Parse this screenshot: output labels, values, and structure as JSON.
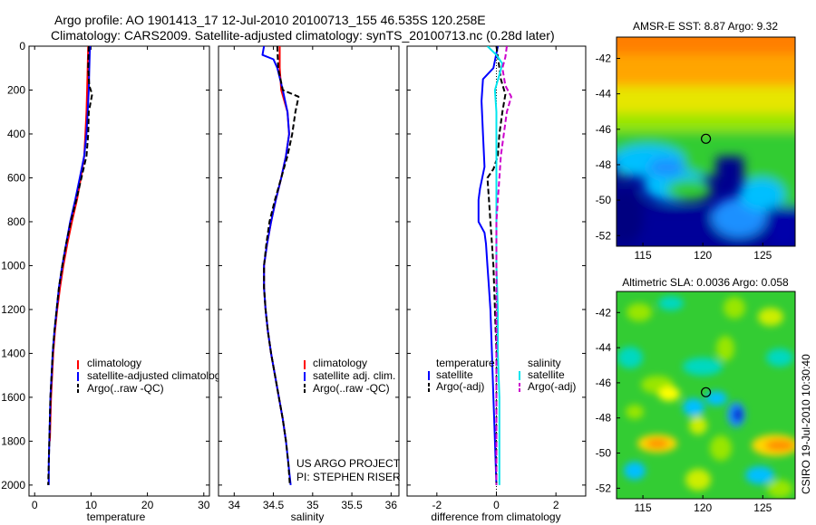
{
  "header": {
    "line1": "Argo profile: AO 1901413_17 12-Jul-2010 20100713_155 46.535S 120.258E",
    "line2": "Climatology: CARS2009. Satellite-adjusted climatology: synTS_20100713.nc (0.28d later)"
  },
  "side_stamp": "CSIRO 19-Jul-2010 10:30:40",
  "colors": {
    "climatology": "#ff0000",
    "satellite": "#0000ff",
    "argo": "#000000",
    "sal_sat": "#00e5ee",
    "sal_argo": "#cc00cc",
    "marker": "#000000"
  },
  "chart_data": [
    {
      "id": "temperature",
      "type": "line",
      "xlabel": "temperature",
      "xlim": [
        -1,
        31
      ],
      "ylim": [
        0,
        2050
      ],
      "y_reversed": true,
      "xticks": [
        0,
        10,
        20,
        30
      ],
      "yticks": [
        0,
        200,
        400,
        600,
        800,
        1000,
        1200,
        1400,
        1600,
        1800,
        2000
      ],
      "legend": {
        "position": "lower-right",
        "entries": [
          "climatology",
          "satellite-adjusted climatolog",
          "Argo(..raw -QC)"
        ]
      },
      "series": [
        {
          "name": "climatology",
          "color": "#ff0000",
          "dash": false,
          "points": [
            [
              9.5,
              0
            ],
            [
              9.4,
              100
            ],
            [
              9.3,
              200
            ],
            [
              9.2,
              300
            ],
            [
              9.0,
              400
            ],
            [
              8.8,
              500
            ],
            [
              8.2,
              600
            ],
            [
              7.5,
              700
            ],
            [
              6.6,
              800
            ],
            [
              5.8,
              900
            ],
            [
              5.1,
              1000
            ],
            [
              4.5,
              1100
            ],
            [
              4.0,
              1200
            ],
            [
              3.6,
              1300
            ],
            [
              3.3,
              1400
            ],
            [
              3.1,
              1500
            ],
            [
              2.9,
              1600
            ],
            [
              2.8,
              1700
            ],
            [
              2.7,
              1800
            ]
          ]
        },
        {
          "name": "satellite-adjusted climatolog",
          "color": "#0000ff",
          "dash": false,
          "points": [
            [
              9.8,
              0
            ],
            [
              9.7,
              100
            ],
            [
              9.6,
              200
            ],
            [
              9.4,
              300
            ],
            [
              9.2,
              400
            ],
            [
              8.8,
              500
            ],
            [
              8.0,
              600
            ],
            [
              7.2,
              700
            ],
            [
              6.3,
              800
            ],
            [
              5.6,
              900
            ],
            [
              4.9,
              1000
            ],
            [
              4.3,
              1100
            ],
            [
              3.9,
              1200
            ],
            [
              3.5,
              1300
            ],
            [
              3.2,
              1400
            ],
            [
              3.0,
              1500
            ],
            [
              2.8,
              1600
            ],
            [
              2.7,
              1700
            ],
            [
              2.6,
              1800
            ],
            [
              2.5,
              1900
            ],
            [
              2.5,
              2000
            ]
          ]
        },
        {
          "name": "Argo(..raw -QC)",
          "color": "#000000",
          "dash": true,
          "points": [
            [
              9.6,
              0
            ],
            [
              9.5,
              100
            ],
            [
              9.7,
              180
            ],
            [
              10.2,
              220
            ],
            [
              9.9,
              260
            ],
            [
              9.6,
              300
            ],
            [
              9.5,
              400
            ],
            [
              9.2,
              500
            ],
            [
              8.3,
              600
            ],
            [
              7.4,
              700
            ],
            [
              6.4,
              800
            ],
            [
              5.6,
              900
            ],
            [
              4.9,
              1000
            ],
            [
              4.3,
              1100
            ],
            [
              3.9,
              1200
            ],
            [
              3.5,
              1300
            ],
            [
              3.2,
              1400
            ],
            [
              3.0,
              1500
            ],
            [
              2.8,
              1600
            ],
            [
              2.7,
              1700
            ],
            [
              2.6,
              1800
            ],
            [
              2.5,
              1900
            ],
            [
              2.4,
              2000
            ]
          ]
        }
      ]
    },
    {
      "id": "salinity",
      "type": "line",
      "xlabel": "salinity",
      "xlim": [
        33.8,
        36.1
      ],
      "ylim": [
        0,
        2050
      ],
      "y_reversed": true,
      "xticks": [
        34,
        34.5,
        35,
        35.5,
        36
      ],
      "legend": {
        "position": "lower-right",
        "entries": [
          "climatology",
          "satellite adj. clim.",
          "Argo(..raw -QC)"
        ]
      },
      "annotation": [
        "US ARGO PROJECT",
        "PI: STEPHEN RISER"
      ],
      "series": [
        {
          "name": "climatology",
          "color": "#ff0000",
          "dash": false,
          "points": [
            [
              34.58,
              0
            ],
            [
              34.58,
              100
            ],
            [
              34.6,
              200
            ],
            [
              34.68,
              300
            ],
            [
              34.7,
              400
            ],
            [
              34.66,
              500
            ],
            [
              34.6,
              600
            ],
            [
              34.53,
              700
            ],
            [
              34.47,
              800
            ],
            [
              34.42,
              900
            ],
            [
              34.38,
              1000
            ],
            [
              34.38,
              1100
            ],
            [
              34.4,
              1200
            ],
            [
              34.43,
              1300
            ],
            [
              34.47,
              1400
            ],
            [
              34.52,
              1500
            ],
            [
              34.57,
              1600
            ],
            [
              34.62,
              1700
            ],
            [
              34.66,
              1800
            ]
          ]
        },
        {
          "name": "satellite adj. clim.",
          "color": "#0000ff",
          "dash": false,
          "points": [
            [
              34.38,
              0
            ],
            [
              34.36,
              40
            ],
            [
              34.5,
              60
            ],
            [
              34.55,
              100
            ],
            [
              34.62,
              200
            ],
            [
              34.68,
              300
            ],
            [
              34.7,
              400
            ],
            [
              34.66,
              500
            ],
            [
              34.6,
              600
            ],
            [
              34.53,
              700
            ],
            [
              34.47,
              800
            ],
            [
              34.42,
              900
            ],
            [
              34.38,
              1000
            ],
            [
              34.38,
              1100
            ],
            [
              34.4,
              1200
            ],
            [
              34.43,
              1300
            ],
            [
              34.47,
              1400
            ],
            [
              34.52,
              1500
            ],
            [
              34.57,
              1600
            ],
            [
              34.62,
              1700
            ],
            [
              34.66,
              1800
            ],
            [
              34.69,
              1900
            ],
            [
              34.72,
              2000
            ]
          ]
        },
        {
          "name": "Argo(..raw -QC)",
          "color": "#000000",
          "dash": true,
          "points": [
            [
              34.55,
              0
            ],
            [
              34.56,
              100
            ],
            [
              34.62,
              200
            ],
            [
              34.82,
              230
            ],
            [
              34.78,
              300
            ],
            [
              34.74,
              400
            ],
            [
              34.68,
              500
            ],
            [
              34.6,
              600
            ],
            [
              34.52,
              700
            ],
            [
              34.45,
              800
            ],
            [
              34.41,
              900
            ],
            [
              34.38,
              1000
            ],
            [
              34.38,
              1100
            ],
            [
              34.4,
              1200
            ],
            [
              34.43,
              1300
            ],
            [
              34.47,
              1400
            ],
            [
              34.52,
              1500
            ],
            [
              34.57,
              1600
            ],
            [
              34.62,
              1700
            ],
            [
              34.66,
              1800
            ],
            [
              34.69,
              1900
            ],
            [
              34.71,
              2000
            ]
          ]
        }
      ]
    },
    {
      "id": "difference",
      "type": "line",
      "xlabel": "difference from climatology",
      "xlim": [
        -3.0,
        3.0
      ],
      "ylim": [
        0,
        2050
      ],
      "y_reversed": true,
      "xticks": [
        -2,
        0,
        2
      ],
      "legend": {
        "position": "lower-right",
        "col_titles": [
          "temperature",
          "salinity"
        ],
        "entries": [
          "satellite",
          "Argo(-adj)",
          "satellite",
          "Argo(-adj)"
        ]
      },
      "series": [
        {
          "name": "temperature satellite",
          "color": "#0000ff",
          "dash": false,
          "points": [
            [
              0.05,
              0
            ],
            [
              -0.1,
              100
            ],
            [
              -0.45,
              150
            ],
            [
              -0.5,
              250
            ],
            [
              -0.45,
              400
            ],
            [
              -0.4,
              550
            ],
            [
              -0.55,
              650
            ],
            [
              -0.6,
              700
            ],
            [
              -0.6,
              800
            ],
            [
              -0.4,
              850
            ],
            [
              -0.35,
              900
            ],
            [
              -0.3,
              1000
            ],
            [
              -0.25,
              1100
            ],
            [
              -0.2,
              1200
            ],
            [
              -0.15,
              1400
            ],
            [
              -0.1,
              1600
            ],
            [
              -0.05,
              1800
            ],
            [
              0.0,
              2000
            ]
          ]
        },
        {
          "name": "temperature Argo(-adj)",
          "color": "#000000",
          "dash": true,
          "points": [
            [
              0.0,
              0
            ],
            [
              0.1,
              100
            ],
            [
              0.15,
              150
            ],
            [
              0.3,
              220
            ],
            [
              0.2,
              300
            ],
            [
              0.1,
              400
            ],
            [
              0.05,
              500
            ],
            [
              -0.1,
              560
            ],
            [
              -0.3,
              600
            ],
            [
              -0.25,
              700
            ],
            [
              -0.2,
              800
            ],
            [
              -0.15,
              900
            ],
            [
              -0.1,
              1000
            ],
            [
              -0.05,
              1200
            ],
            [
              0.0,
              1400
            ],
            [
              0.0,
              1600
            ],
            [
              0.0,
              1800
            ],
            [
              0.0,
              2000
            ]
          ]
        },
        {
          "name": "salinity satellite",
          "color": "#00e5ee",
          "dash": false,
          "points": [
            [
              -0.3,
              0
            ],
            [
              0.0,
              40
            ],
            [
              0.2,
              80
            ],
            [
              0.1,
              130
            ],
            [
              -0.05,
              200
            ],
            [
              0.0,
              300
            ],
            [
              0.0,
              400
            ],
            [
              0.0,
              600
            ],
            [
              0.0,
              800
            ],
            [
              0.0,
              1000
            ],
            [
              0.05,
              1200
            ],
            [
              0.05,
              1400
            ],
            [
              0.1,
              1600
            ],
            [
              0.1,
              1800
            ],
            [
              0.1,
              2000
            ]
          ]
        },
        {
          "name": "salinity Argo(-adj)",
          "color": "#cc00cc",
          "dash": true,
          "points": [
            [
              0.35,
              0
            ],
            [
              0.3,
              50
            ],
            [
              0.2,
              100
            ],
            [
              0.3,
              180
            ],
            [
              0.5,
              230
            ],
            [
              0.35,
              300
            ],
            [
              0.25,
              400
            ],
            [
              0.15,
              500
            ],
            [
              0.1,
              600
            ],
            [
              0.05,
              700
            ],
            [
              0.0,
              800
            ],
            [
              0.0,
              1000
            ],
            [
              0.0,
              1200
            ],
            [
              0.0,
              1400
            ],
            [
              0.0,
              1600
            ],
            [
              0.0,
              1800
            ],
            [
              0.0,
              2000
            ]
          ]
        }
      ]
    },
    {
      "id": "sst_map",
      "type": "heatmap",
      "title": "AMSR-E SST: 8.87 Argo: 9.32",
      "xlim": [
        112.8,
        127.7
      ],
      "ylim": [
        -52.6,
        -40.8
      ],
      "xticks": [
        115,
        120,
        125
      ],
      "yticks": [
        -42,
        -44,
        -46,
        -48,
        -50,
        -52
      ],
      "marker": [
        120.258,
        -46.535
      ],
      "colormap": "jet",
      "field": "sea surface temperature, warm north, cold south"
    },
    {
      "id": "sla_map",
      "type": "heatmap",
      "title": "Altimetric SLA: 0.0036 Argo: 0.058",
      "xlim": [
        112.8,
        127.7
      ],
      "ylim": [
        -52.6,
        -40.8
      ],
      "xticks": [
        115,
        120,
        125
      ],
      "yticks": [
        -42,
        -44,
        -46,
        -48,
        -50,
        -52
      ],
      "marker": [
        120.258,
        -46.535
      ],
      "colormap": "jet",
      "field": "sea level anomaly, mostly near zero with scattered eddies"
    }
  ]
}
